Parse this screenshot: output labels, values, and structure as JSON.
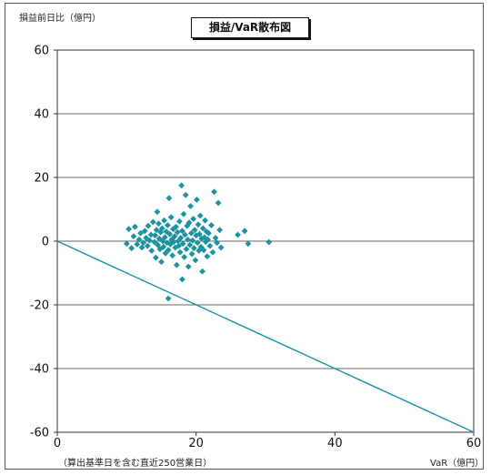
{
  "chart_data": {
    "type": "scatter",
    "title": "損益/VaR散布図",
    "ylabel": "損益前日比（億円）",
    "xlabel": "VaR（億円）",
    "xnote": "（算出基準日を含む直近250営業日）",
    "xlim": [
      0,
      60
    ],
    "ylim": [
      -60,
      60
    ],
    "xticks": [
      0,
      20,
      40,
      60
    ],
    "yticks": [
      60,
      40,
      20,
      0,
      -20,
      -40,
      -60
    ],
    "grid": true,
    "marker_color": "#1a93a0",
    "line_color": "#1a93a0",
    "reference_line": {
      "from": [
        0,
        0
      ],
      "to": [
        60,
        -60
      ]
    },
    "points": [
      [
        10.0,
        -0.8
      ],
      [
        10.3,
        3.8
      ],
      [
        10.7,
        -2.2
      ],
      [
        11.0,
        1.5
      ],
      [
        11.2,
        4.5
      ],
      [
        11.5,
        -1.0
      ],
      [
        11.8,
        0.5
      ],
      [
        12.0,
        2.5
      ],
      [
        12.2,
        -2.0
      ],
      [
        12.4,
        -0.5
      ],
      [
        12.6,
        3.2
      ],
      [
        12.8,
        1.0
      ],
      [
        13.0,
        -1.5
      ],
      [
        13.1,
        4.8
      ],
      [
        13.3,
        0.2
      ],
      [
        13.5,
        2.0
      ],
      [
        13.6,
        -3.0
      ],
      [
        13.8,
        6.0
      ],
      [
        14.0,
        -0.3
      ],
      [
        14.1,
        1.8
      ],
      [
        14.2,
        -5.2
      ],
      [
        14.3,
        3.5
      ],
      [
        14.4,
        9.2
      ],
      [
        14.5,
        -1.2
      ],
      [
        14.6,
        5.5
      ],
      [
        14.7,
        0.8
      ],
      [
        14.8,
        -2.5
      ],
      [
        14.9,
        2.8
      ],
      [
        15.0,
        -6.5
      ],
      [
        15.1,
        4.0
      ],
      [
        15.2,
        0.0
      ],
      [
        15.3,
        -1.8
      ],
      [
        15.4,
        6.5
      ],
      [
        15.5,
        1.2
      ],
      [
        15.6,
        -3.8
      ],
      [
        15.7,
        3.0
      ],
      [
        15.8,
        -0.5
      ],
      [
        15.9,
        5.0
      ],
      [
        16.0,
        -18.0
      ],
      [
        16.0,
        -2.8
      ],
      [
        16.1,
        13.5
      ],
      [
        16.2,
        2.2
      ],
      [
        16.3,
        -1.0
      ],
      [
        16.4,
        7.5
      ],
      [
        16.5,
        0.5
      ],
      [
        16.6,
        -4.5
      ],
      [
        16.7,
        3.8
      ],
      [
        16.8,
        -0.2
      ],
      [
        16.9,
        1.5
      ],
      [
        17.0,
        -2.0
      ],
      [
        17.1,
        4.5
      ],
      [
        17.2,
        -7.5
      ],
      [
        17.3,
        2.8
      ],
      [
        17.4,
        0.0
      ],
      [
        17.5,
        -1.5
      ],
      [
        17.6,
        6.2
      ],
      [
        17.7,
        -3.5
      ],
      [
        17.8,
        1.0
      ],
      [
        17.9,
        17.5
      ],
      [
        18.0,
        -12.0
      ],
      [
        18.0,
        3.2
      ],
      [
        18.1,
        -0.8
      ],
      [
        18.2,
        8.5
      ],
      [
        18.3,
        -5.0
      ],
      [
        18.4,
        2.0
      ],
      [
        18.5,
        14.5
      ],
      [
        18.6,
        -2.5
      ],
      [
        18.7,
        4.8
      ],
      [
        18.8,
        0.5
      ],
      [
        18.9,
        -8.0
      ],
      [
        19.0,
        5.8
      ],
      [
        19.1,
        -1.2
      ],
      [
        19.2,
        11.0
      ],
      [
        19.3,
        2.5
      ],
      [
        19.4,
        -4.0
      ],
      [
        19.5,
        0.2
      ],
      [
        19.6,
        7.0
      ],
      [
        19.7,
        -2.2
      ],
      [
        19.8,
        3.5
      ],
      [
        19.9,
        -6.0
      ],
      [
        20.0,
        1.8
      ],
      [
        20.1,
        13.0
      ],
      [
        20.2,
        -0.5
      ],
      [
        20.3,
        5.2
      ],
      [
        20.4,
        -3.0
      ],
      [
        20.5,
        2.2
      ],
      [
        20.6,
        8.0
      ],
      [
        20.7,
        -1.8
      ],
      [
        20.8,
        0.8
      ],
      [
        20.9,
        -9.5
      ],
      [
        21.0,
        4.0
      ],
      [
        21.1,
        -2.8
      ],
      [
        21.2,
        1.2
      ],
      [
        21.3,
        6.5
      ],
      [
        21.4,
        -0.2
      ],
      [
        21.5,
        3.0
      ],
      [
        21.6,
        -4.8
      ],
      [
        21.7,
        0.5
      ],
      [
        21.8,
        2.5
      ],
      [
        22.0,
        -1.5
      ],
      [
        22.2,
        5.0
      ],
      [
        22.4,
        -3.5
      ],
      [
        22.6,
        15.5
      ],
      [
        22.8,
        1.0
      ],
      [
        23.0,
        -0.5
      ],
      [
        23.2,
        12.0
      ],
      [
        23.4,
        3.5
      ],
      [
        23.6,
        -2.0
      ],
      [
        26.0,
        2.0
      ],
      [
        27.0,
        3.2
      ],
      [
        27.5,
        -0.8
      ],
      [
        30.5,
        -0.3
      ]
    ]
  }
}
